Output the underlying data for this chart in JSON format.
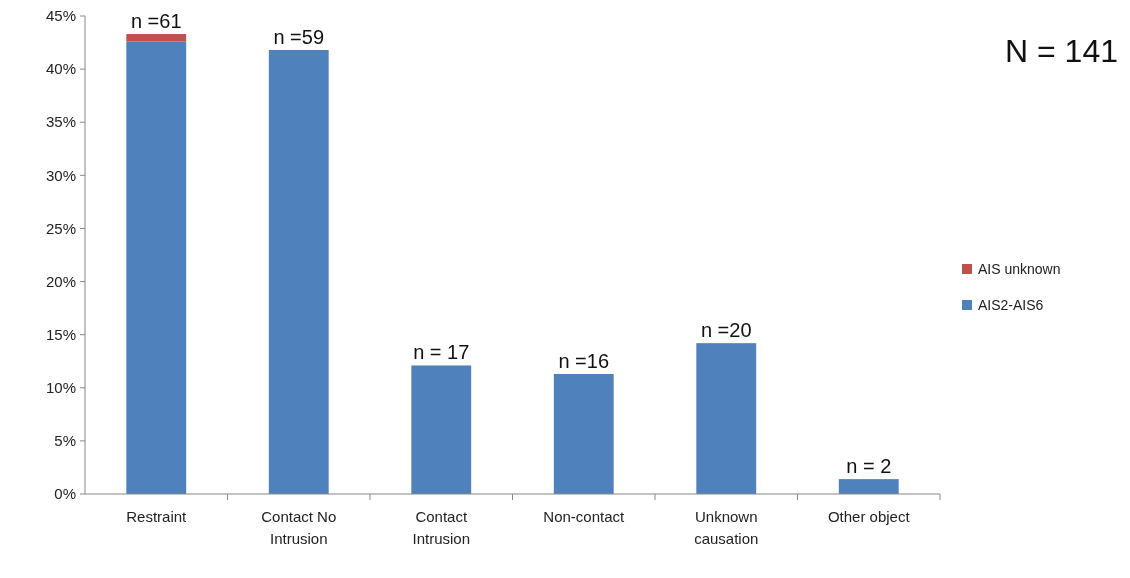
{
  "chart_data": {
    "type": "bar",
    "stacked": true,
    "categories": [
      "Restraint",
      "Contact No Intrusion",
      "Contact Intrusion",
      "Non-contact",
      "Unknown causation",
      "Other object"
    ],
    "series": [
      {
        "name": "AIS2-AIS6",
        "color": "#4f81bd",
        "values": [
          42.6,
          41.8,
          12.1,
          11.3,
          14.2,
          1.4
        ]
      },
      {
        "name": "AIS unknown",
        "color": "#c0504d",
        "values": [
          0.7,
          0,
          0,
          0,
          0,
          0
        ]
      }
    ],
    "ylim": [
      0,
      45
    ],
    "yticks": [
      {
        "value": 0,
        "label": "0%"
      },
      {
        "value": 5,
        "label": "5%"
      },
      {
        "value": 10,
        "label": "10%"
      },
      {
        "value": 15,
        "label": "15%"
      },
      {
        "value": 20,
        "label": "20%"
      },
      {
        "value": 25,
        "label": "25%"
      },
      {
        "value": 30,
        "label": "30%"
      },
      {
        "value": 35,
        "label": "35%"
      },
      {
        "value": 40,
        "label": "40%"
      },
      {
        "value": 45,
        "label": "45%"
      }
    ],
    "grid": false,
    "legend": "right",
    "annotations": [
      {
        "text": "n =61",
        "x": "Restraint",
        "y": 43.3
      },
      {
        "text": "n =59",
        "x": "Contact No Intrusion",
        "y": 41.8
      },
      {
        "text": "n = 17",
        "x": "Contact Intrusion",
        "y": 12.1
      },
      {
        "text": "n =16",
        "x": "Non-contact",
        "y": 11.3
      },
      {
        "text": "n =20",
        "x": "Unknown causation",
        "y": 14.2
      },
      {
        "text": "n = 2",
        "x": "Other object",
        "y": 1.4
      },
      "N = 141"
    ]
  }
}
